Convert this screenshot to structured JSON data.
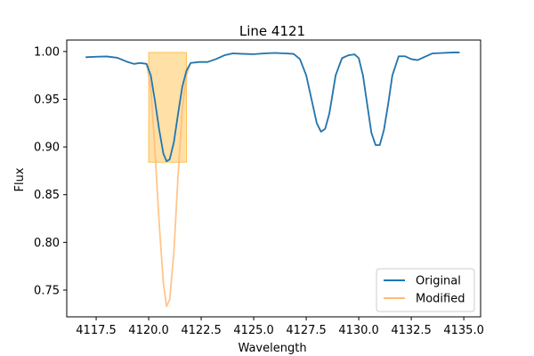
{
  "chart_data": {
    "type": "line",
    "title": "Line 4121",
    "xlabel": "Wavelength",
    "ylabel": "Flux",
    "xlim": [
      4116.1,
      4135.8
    ],
    "ylim": [
      0.722,
      1.012
    ],
    "xticks": [
      4117.5,
      4120.0,
      4122.5,
      4125.0,
      4127.5,
      4130.0,
      4132.5,
      4135.0
    ],
    "xtick_labels": [
      "4117.5",
      "4120.0",
      "4122.5",
      "4125.0",
      "4127.5",
      "4130.0",
      "4132.5",
      "4135.0"
    ],
    "yticks": [
      0.75,
      0.8,
      0.85,
      0.9,
      0.95,
      1.0
    ],
    "ytick_labels": [
      "0.75",
      "0.80",
      "0.85",
      "0.90",
      "0.95",
      "1.00"
    ],
    "grid": false,
    "legend_position": "lower-right",
    "highlight_region": {
      "x": [
        4120.0,
        4121.8
      ],
      "y": [
        0.884,
        0.999
      ],
      "color": "#ffa500",
      "opacity": 0.35
    },
    "series": [
      {
        "name": "Original",
        "color": "#1f77b4",
        "x": [
          4117.0,
          4117.5,
          4118.0,
          4118.5,
          4119.0,
          4119.3,
          4119.6,
          4119.9,
          4120.1,
          4120.3,
          4120.5,
          4120.7,
          4120.85,
          4121.0,
          4121.2,
          4121.4,
          4121.6,
          4121.8,
          4122.0,
          4122.4,
          4122.8,
          4123.2,
          4123.6,
          4124.0,
          4124.5,
          4125.0,
          4125.5,
          4126.0,
          4126.5,
          4126.9,
          4127.2,
          4127.5,
          4127.8,
          4128.0,
          4128.2,
          4128.4,
          4128.6,
          4128.9,
          4129.2,
          4129.5,
          4129.8,
          4130.0,
          4130.2,
          4130.4,
          4130.6,
          4130.8,
          4131.0,
          4131.2,
          4131.4,
          4131.6,
          4131.9,
          4132.2,
          4132.5,
          4132.8,
          4133.1,
          4133.5,
          4134.0,
          4134.5,
          4134.8
        ],
        "y": [
          0.994,
          0.9945,
          0.9948,
          0.9935,
          0.989,
          0.987,
          0.988,
          0.987,
          0.975,
          0.948,
          0.918,
          0.893,
          0.885,
          0.887,
          0.905,
          0.935,
          0.963,
          0.98,
          0.988,
          0.989,
          0.989,
          0.992,
          0.996,
          0.998,
          0.9975,
          0.9972,
          0.998,
          0.9985,
          0.998,
          0.9975,
          0.992,
          0.975,
          0.945,
          0.925,
          0.916,
          0.919,
          0.935,
          0.975,
          0.993,
          0.996,
          0.997,
          0.993,
          0.975,
          0.945,
          0.915,
          0.902,
          0.902,
          0.918,
          0.945,
          0.975,
          0.995,
          0.995,
          0.992,
          0.991,
          0.994,
          0.998,
          0.9985,
          0.999,
          0.999
        ]
      },
      {
        "name": "Modified",
        "color": "#ffbb78",
        "x": [
          4117.0,
          4117.5,
          4118.0,
          4118.5,
          4119.0,
          4119.3,
          4119.6,
          4119.9,
          4120.1,
          4120.3,
          4120.5,
          4120.7,
          4120.85,
          4121.0,
          4121.2,
          4121.4,
          4121.6,
          4121.8,
          4122.0,
          4122.4,
          4122.8,
          4123.2,
          4123.6,
          4124.0,
          4124.5,
          4125.0,
          4125.5,
          4126.0,
          4126.5,
          4126.9,
          4127.2,
          4127.5,
          4127.8,
          4128.0,
          4128.2,
          4128.4,
          4128.6,
          4128.9,
          4129.2,
          4129.5,
          4129.8,
          4130.0,
          4130.2,
          4130.4,
          4130.6,
          4130.8,
          4131.0,
          4131.2,
          4131.4,
          4131.6,
          4131.9,
          4132.2,
          4132.5,
          4132.8,
          4133.1,
          4133.5,
          4134.0,
          4134.5,
          4134.8
        ],
        "y": [
          0.994,
          0.9945,
          0.9948,
          0.9935,
          0.989,
          0.987,
          0.988,
          0.987,
          0.962,
          0.896,
          0.82,
          0.757,
          0.733,
          0.74,
          0.79,
          0.87,
          0.94,
          0.975,
          0.988,
          0.989,
          0.989,
          0.992,
          0.996,
          0.998,
          0.9975,
          0.9972,
          0.998,
          0.9985,
          0.998,
          0.9975,
          0.992,
          0.975,
          0.945,
          0.925,
          0.916,
          0.919,
          0.935,
          0.975,
          0.993,
          0.996,
          0.997,
          0.993,
          0.975,
          0.945,
          0.915,
          0.902,
          0.902,
          0.918,
          0.945,
          0.975,
          0.995,
          0.995,
          0.992,
          0.991,
          0.994,
          0.998,
          0.9985,
          0.999,
          0.999
        ]
      }
    ]
  }
}
